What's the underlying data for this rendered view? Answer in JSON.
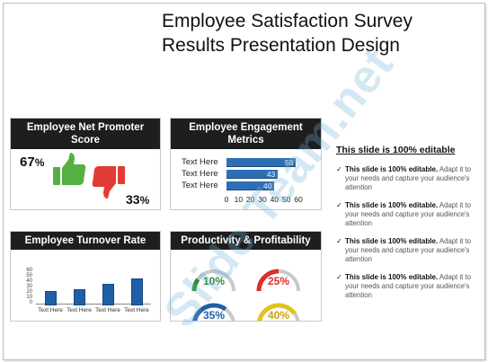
{
  "slide": {
    "title_line1": "Employee Satisfaction Survey",
    "title_line2": "Results Presentation Design",
    "watermark": "Slide Team.net"
  },
  "nps": {
    "title": "Employee Net Promoter Score",
    "promoter_value": "67",
    "detractor_value": "33",
    "percent_sign": "%",
    "thumbs_up_color": "#55b043",
    "thumbs_down_color": "#e23b36",
    "icons": [
      "thumbs-up-icon",
      "thumbs-down-icon"
    ]
  },
  "engagement": {
    "title": "Employee Engagement Metrics",
    "chart_data": {
      "type": "bar",
      "orientation": "horizontal",
      "categories": [
        "Text Here",
        "Text Here",
        "Text Here"
      ],
      "values": [
        58,
        43,
        40
      ],
      "xlim": [
        0,
        60
      ],
      "x_ticks": [
        "0",
        "10",
        "20",
        "30",
        "40",
        "50",
        "60"
      ],
      "color": "#2d6fb5"
    }
  },
  "turnover": {
    "title": "Employee Turnover Rate",
    "chart_data": {
      "type": "bar",
      "categories": [
        "Text Here",
        "Text Here",
        "Text Here",
        "Text Here"
      ],
      "values": [
        24,
        26,
        36,
        46
      ],
      "ylim": [
        0,
        60
      ],
      "y_ticks": [
        "0",
        "10",
        "20",
        "30",
        "40",
        "50",
        "60"
      ],
      "color": "#1f5fa8"
    }
  },
  "productivity": {
    "title": "Productivity & Profitability",
    "gauges": [
      {
        "label": "10%",
        "value": 10,
        "color": "#2e8b3a"
      },
      {
        "label": "25%",
        "value": 25,
        "color": "#d8302b"
      },
      {
        "label": "35%",
        "value": 35,
        "color": "#1f5fa8"
      },
      {
        "label": "40%",
        "value": 40,
        "color": "#e4c21c"
      }
    ],
    "track_color": "#c9c9c9"
  },
  "sidebar": {
    "heading": "This slide is 100% editable",
    "bullets": [
      {
        "title": "This slide is 100% editable.",
        "body": "Adapt it to your needs and capture your audience's attention"
      },
      {
        "title": "This slide is 100% editable.",
        "body": "Adapt it to your needs and capture your audience's attention"
      },
      {
        "title": "This slide is 100% editable.",
        "body": "Adapt it to your needs and capture your audience's attention"
      },
      {
        "title": "This slide is 100% editable.",
        "body": "Adapt it to your needs and capture your audience's attention"
      }
    ],
    "tick_glyph": "✓"
  }
}
